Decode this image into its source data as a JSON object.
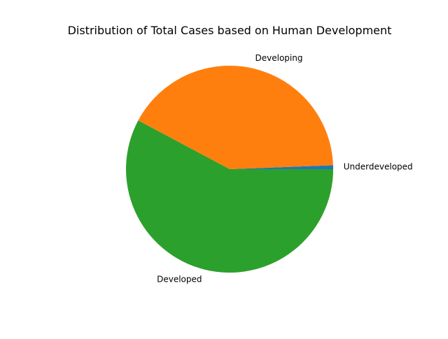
{
  "chart_data": {
    "type": "pie",
    "title": "Distribution of Total Cases based on Human Development",
    "labels": [
      "Underdeveloped",
      "Developing",
      "Developed"
    ],
    "values": [
      0.6,
      41.6,
      57.8
    ],
    "colors": [
      "#1f77b4",
      "#ff7f0e",
      "#2ca02c"
    ],
    "start_angle_deg": 0,
    "direction": "counterclockwise"
  }
}
